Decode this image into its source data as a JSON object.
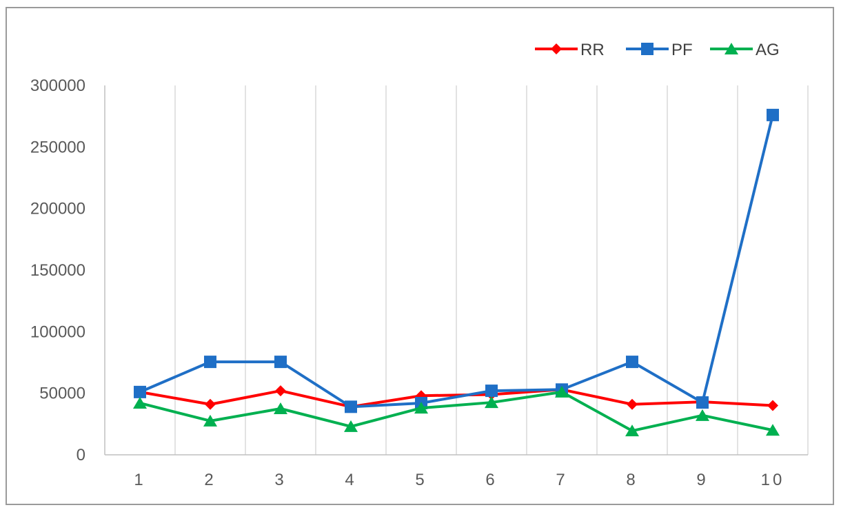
{
  "chart_data": {
    "type": "line",
    "title": "",
    "xlabel": "",
    "ylabel": "",
    "categories": [
      "1",
      "2",
      "3",
      "4",
      "5",
      "6",
      "7",
      "8",
      "9",
      "10"
    ],
    "ylim": [
      0,
      300000
    ],
    "yticks": [
      0,
      50000,
      100000,
      150000,
      200000,
      250000,
      300000
    ],
    "ytick_labels": [
      "0",
      "50000",
      "100000",
      "150000",
      "200000",
      "250000",
      "300000"
    ],
    "grid": "vertical",
    "legend_position": "top-right",
    "series": [
      {
        "name": "RR",
        "color": "#ff0000",
        "marker": "diamond",
        "values": [
          51000,
          41000,
          52000,
          39000,
          48000,
          49000,
          53000,
          41000,
          43000,
          40000
        ]
      },
      {
        "name": "PF",
        "color": "#1f6fc6",
        "marker": "square",
        "values": [
          51000,
          75500,
          75500,
          39000,
          42000,
          52000,
          53000,
          75500,
          42500,
          276000
        ]
      },
      {
        "name": "AG",
        "color": "#00b050",
        "marker": "triangle",
        "values": [
          42000,
          27500,
          37500,
          23000,
          38000,
          42500,
          51000,
          19500,
          32000,
          20000
        ]
      }
    ]
  }
}
